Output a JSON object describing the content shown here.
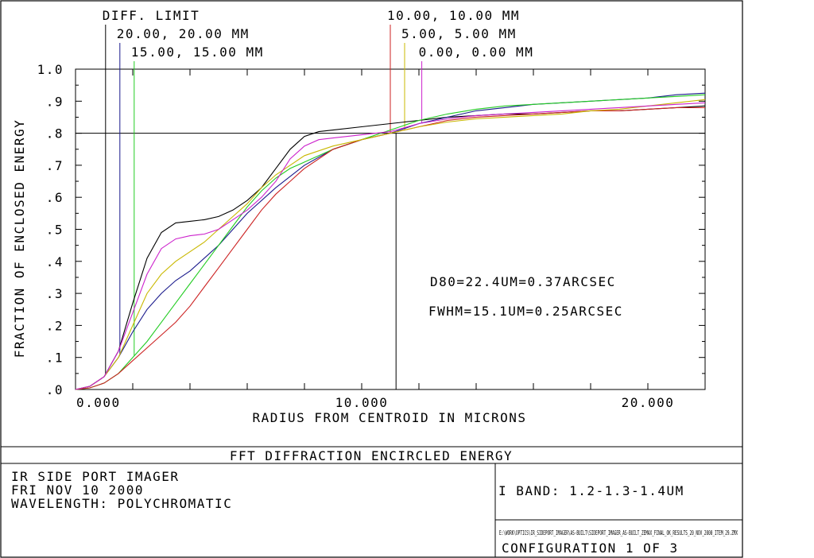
{
  "chart_data": {
    "type": "line",
    "title": "FFT DIFFRACTION ENCIRCLED ENERGY",
    "xlabel": "RADIUS FROM CENTROID IN MICRONS",
    "ylabel": "FRACTION OF ENCLOSED ENERGY",
    "xlim": [
      0,
      22
    ],
    "ylim": [
      0,
      1.0
    ],
    "x_ticks": [
      {
        "v": 0,
        "label": "0.000"
      },
      {
        "v": 10,
        "label": "10.000"
      },
      {
        "v": 20,
        "label": "20.000"
      }
    ],
    "y_ticks": [
      {
        "v": 0,
        "label": ".0"
      },
      {
        "v": 0.1,
        "label": ".1"
      },
      {
        "v": 0.2,
        "label": ".2"
      },
      {
        "v": 0.3,
        "label": ".3"
      },
      {
        "v": 0.4,
        "label": ".4"
      },
      {
        "v": 0.5,
        "label": ".5"
      },
      {
        "v": 0.6,
        "label": ".6"
      },
      {
        "v": 0.7,
        "label": ".7"
      },
      {
        "v": 0.8,
        "label": ".8"
      },
      {
        "v": 0.9,
        "label": ".9"
      },
      {
        "v": 1.0,
        "label": "1.0"
      }
    ],
    "reference_level": 0.8,
    "reference_radius": 11.2,
    "annotations": [
      "D80=22.4UM=0.37ARCSEC",
      "FWHM=15.1UM=0.25ARCSEC"
    ],
    "series": [
      {
        "name": "DIFF. LIMIT",
        "color": "#000000",
        "marker_x": 1.05,
        "points": [
          [
            0,
            0
          ],
          [
            0.5,
            0.01
          ],
          [
            1,
            0.04
          ],
          [
            1.5,
            0.12
          ],
          [
            2,
            0.27
          ],
          [
            2.5,
            0.41
          ],
          [
            3,
            0.49
          ],
          [
            3.5,
            0.52
          ],
          [
            4,
            0.525
          ],
          [
            4.5,
            0.53
          ],
          [
            5,
            0.54
          ],
          [
            5.5,
            0.56
          ],
          [
            6,
            0.59
          ],
          [
            6.5,
            0.63
          ],
          [
            7,
            0.69
          ],
          [
            7.5,
            0.75
          ],
          [
            8,
            0.79
          ],
          [
            8.5,
            0.805
          ],
          [
            9,
            0.81
          ],
          [
            10,
            0.82
          ],
          [
            11,
            0.83
          ],
          [
            12,
            0.84
          ],
          [
            13,
            0.85
          ],
          [
            14,
            0.855
          ],
          [
            15,
            0.86
          ],
          [
            16,
            0.86
          ],
          [
            17,
            0.865
          ],
          [
            18,
            0.87
          ],
          [
            19,
            0.87
          ],
          [
            20,
            0.875
          ],
          [
            21,
            0.88
          ],
          [
            22,
            0.885
          ]
        ]
      },
      {
        "name": "20.00, 20.00 MM",
        "color": "#1a1a8c",
        "marker_x": 1.55,
        "points": [
          [
            0,
            0
          ],
          [
            0.5,
            0.01
          ],
          [
            1,
            0.04
          ],
          [
            1.5,
            0.1
          ],
          [
            2,
            0.18
          ],
          [
            2.5,
            0.25
          ],
          [
            3,
            0.3
          ],
          [
            3.5,
            0.34
          ],
          [
            4,
            0.37
          ],
          [
            4.5,
            0.41
          ],
          [
            5,
            0.45
          ],
          [
            5.5,
            0.5
          ],
          [
            6,
            0.55
          ],
          [
            7,
            0.63
          ],
          [
            8,
            0.7
          ],
          [
            9,
            0.75
          ],
          [
            10,
            0.78
          ],
          [
            11,
            0.8
          ],
          [
            12,
            0.83
          ],
          [
            13,
            0.85
          ],
          [
            14,
            0.87
          ],
          [
            15,
            0.88
          ],
          [
            16,
            0.89
          ],
          [
            17,
            0.895
          ],
          [
            18,
            0.9
          ],
          [
            19,
            0.905
          ],
          [
            20,
            0.91
          ],
          [
            21,
            0.92
          ],
          [
            22,
            0.925
          ]
        ]
      },
      {
        "name": "15.00, 15.00 MM",
        "color": "#22cc22",
        "marker_x": 2.05,
        "points": [
          [
            0,
            0
          ],
          [
            0.5,
            0.005
          ],
          [
            1,
            0.02
          ],
          [
            1.5,
            0.05
          ],
          [
            2,
            0.1
          ],
          [
            2.5,
            0.15
          ],
          [
            3,
            0.21
          ],
          [
            3.5,
            0.27
          ],
          [
            4,
            0.33
          ],
          [
            4.5,
            0.39
          ],
          [
            5,
            0.45
          ],
          [
            5.5,
            0.51
          ],
          [
            6,
            0.57
          ],
          [
            6.5,
            0.62
          ],
          [
            7,
            0.66
          ],
          [
            7.5,
            0.69
          ],
          [
            8,
            0.71
          ],
          [
            9,
            0.75
          ],
          [
            10,
            0.78
          ],
          [
            11,
            0.81
          ],
          [
            12,
            0.84
          ],
          [
            13,
            0.86
          ],
          [
            14,
            0.875
          ],
          [
            15,
            0.885
          ],
          [
            16,
            0.89
          ],
          [
            17,
            0.895
          ],
          [
            18,
            0.9
          ],
          [
            19,
            0.905
          ],
          [
            20,
            0.91
          ],
          [
            21,
            0.915
          ],
          [
            22,
            0.92
          ]
        ]
      },
      {
        "name": "10.00, 10.00 MM",
        "color": "#cc2222",
        "marker_x": 11.0,
        "points": [
          [
            0,
            0
          ],
          [
            0.5,
            0.005
          ],
          [
            1,
            0.02
          ],
          [
            1.5,
            0.05
          ],
          [
            2,
            0.09
          ],
          [
            2.5,
            0.13
          ],
          [
            3,
            0.17
          ],
          [
            3.5,
            0.21
          ],
          [
            4,
            0.26
          ],
          [
            4.5,
            0.32
          ],
          [
            5,
            0.38
          ],
          [
            5.5,
            0.44
          ],
          [
            6,
            0.5
          ],
          [
            6.5,
            0.56
          ],
          [
            7,
            0.61
          ],
          [
            7.5,
            0.65
          ],
          [
            8,
            0.69
          ],
          [
            9,
            0.75
          ],
          [
            10,
            0.78
          ],
          [
            11,
            0.8
          ],
          [
            12,
            0.82
          ],
          [
            13,
            0.84
          ],
          [
            14,
            0.85
          ],
          [
            15,
            0.855
          ],
          [
            16,
            0.86
          ],
          [
            17,
            0.865
          ],
          [
            18,
            0.87
          ],
          [
            19,
            0.87
          ],
          [
            20,
            0.875
          ],
          [
            21,
            0.88
          ],
          [
            22,
            0.88
          ]
        ]
      },
      {
        "name": "5.00, 5.00 MM",
        "color": "#c9b800",
        "marker_x": 11.5,
        "points": [
          [
            0,
            0
          ],
          [
            0.5,
            0.01
          ],
          [
            1,
            0.04
          ],
          [
            1.5,
            0.1
          ],
          [
            2,
            0.2
          ],
          [
            2.5,
            0.3
          ],
          [
            3,
            0.36
          ],
          [
            3.5,
            0.4
          ],
          [
            4,
            0.43
          ],
          [
            4.5,
            0.46
          ],
          [
            5,
            0.5
          ],
          [
            5.5,
            0.54
          ],
          [
            6,
            0.58
          ],
          [
            6.5,
            0.63
          ],
          [
            7,
            0.67
          ],
          [
            7.5,
            0.7
          ],
          [
            8,
            0.73
          ],
          [
            9,
            0.76
          ],
          [
            10,
            0.78
          ],
          [
            11,
            0.8
          ],
          [
            12,
            0.82
          ],
          [
            13,
            0.835
          ],
          [
            14,
            0.845
          ],
          [
            15,
            0.85
          ],
          [
            16,
            0.855
          ],
          [
            17,
            0.86
          ],
          [
            18,
            0.87
          ],
          [
            19,
            0.875
          ],
          [
            20,
            0.885
          ],
          [
            21,
            0.895
          ],
          [
            22,
            0.905
          ]
        ]
      },
      {
        "name": "0.00, 0.00 MM",
        "color": "#cc22cc",
        "marker_x": 12.1,
        "points": [
          [
            0,
            0
          ],
          [
            0.5,
            0.01
          ],
          [
            1,
            0.04
          ],
          [
            1.5,
            0.12
          ],
          [
            2,
            0.24
          ],
          [
            2.5,
            0.36
          ],
          [
            3,
            0.44
          ],
          [
            3.5,
            0.47
          ],
          [
            4,
            0.48
          ],
          [
            4.5,
            0.485
          ],
          [
            5,
            0.5
          ],
          [
            5.5,
            0.53
          ],
          [
            6,
            0.56
          ],
          [
            6.5,
            0.6
          ],
          [
            7,
            0.65
          ],
          [
            7.5,
            0.72
          ],
          [
            8,
            0.76
          ],
          [
            8.5,
            0.78
          ],
          [
            9,
            0.785
          ],
          [
            10,
            0.795
          ],
          [
            11,
            0.805
          ],
          [
            12,
            0.83
          ],
          [
            13,
            0.845
          ],
          [
            14,
            0.855
          ],
          [
            15,
            0.86
          ],
          [
            16,
            0.865
          ],
          [
            17,
            0.87
          ],
          [
            18,
            0.875
          ],
          [
            19,
            0.88
          ],
          [
            20,
            0.885
          ],
          [
            21,
            0.89
          ],
          [
            22,
            0.895
          ]
        ]
      }
    ]
  },
  "footer": {
    "title": "FFT DIFFRACTION ENCIRCLED ENERGY",
    "system_name": "IR SIDE PORT IMAGER",
    "date": "FRI NOV 10 2000",
    "wavelength": "WAVELENGTH: POLYCHROMATIC",
    "band": "I BAND: 1.2-1.3-1.4UM",
    "file_path": "E:\\WORK\\OPTICS\\IR_SIDEPORT_IMAGER\\AS-BUILT\\SIDEPORT_IMAGER_AS-BUILT_ZEMAX_FINAL_OK_RESULTS_20_NOV_2000_ITEM_29.ZMX",
    "configuration": "CONFIGURATION 1 OF 3"
  }
}
